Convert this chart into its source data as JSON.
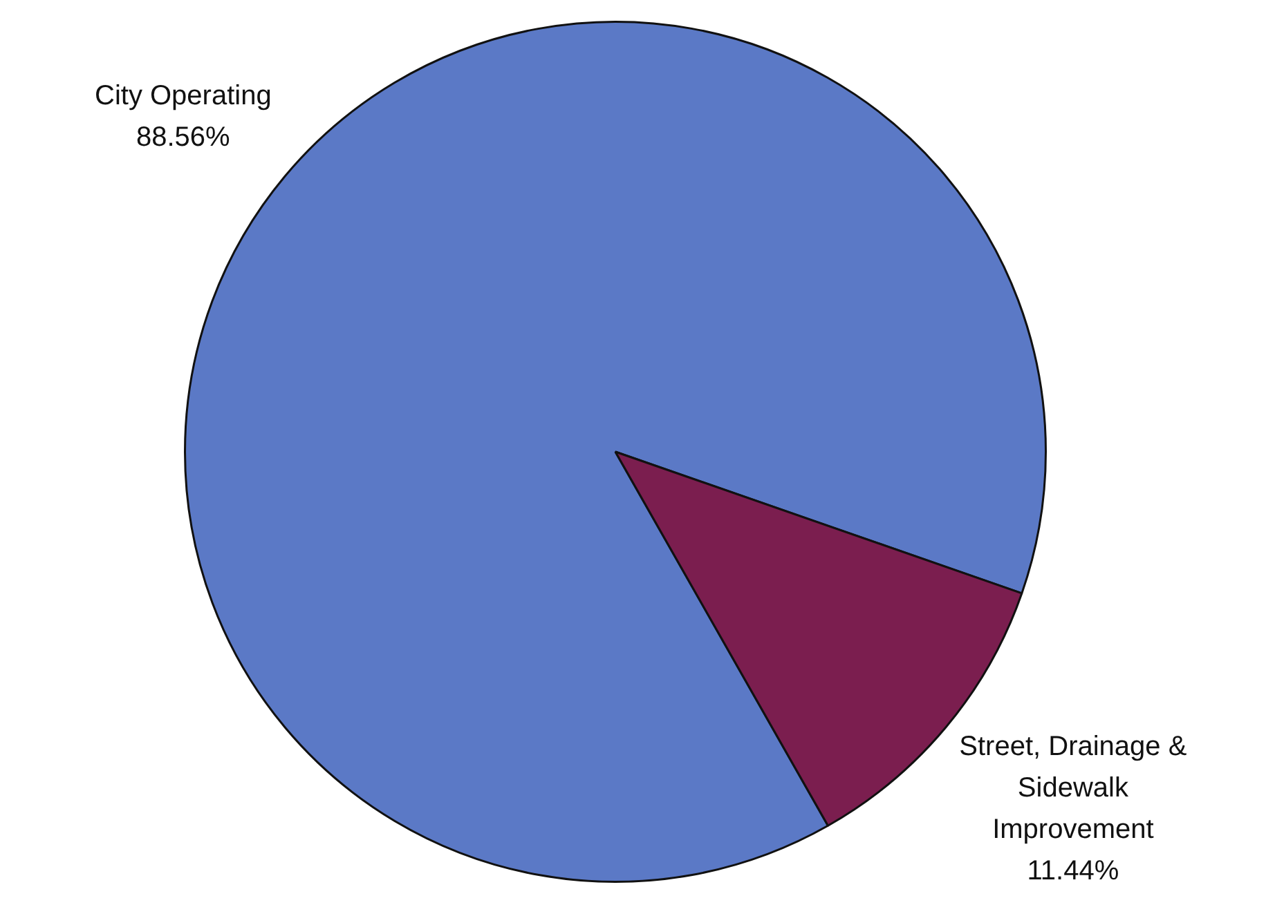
{
  "chart_data": {
    "type": "pie",
    "categories": [
      "City Operating",
      "Street, Drainage & Sidewalk Improvement"
    ],
    "values": [
      88.56,
      11.44
    ],
    "value_labels": [
      "88.56%",
      "11.44%"
    ],
    "colors": [
      "#5b79c6",
      "#7b1e4f"
    ]
  }
}
